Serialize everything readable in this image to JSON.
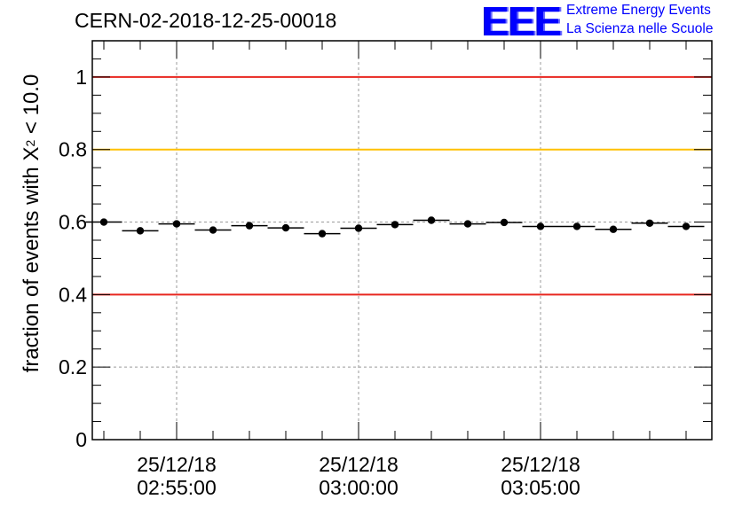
{
  "header": {
    "run_id": "CERN-02-2018-12-25-00018",
    "logo_text": "EEE",
    "logo_line1": "Extreme Energy Events",
    "logo_line2": "La Scienza nelle Scuole"
  },
  "chart_data": {
    "type": "scatter",
    "title": "CERN-02-2018-12-25-00018",
    "ylabel_prefix": "fraction of events with X",
    "ylabel_sup": "2",
    "ylabel_suffix": " < 10.0",
    "ylim": [
      0,
      1.1
    ],
    "yticks": [
      0,
      0.2,
      0.4,
      0.6,
      0.8,
      1
    ],
    "ytick_labels": [
      "0",
      "0.2",
      "0.4",
      "0.6",
      "0.8",
      "1"
    ],
    "xticks": [
      {
        "time": "02:55:00",
        "date": "25/12/18"
      },
      {
        "time": "03:00:00",
        "date": "25/12/18"
      },
      {
        "time": "03:05:00",
        "date": "25/12/18"
      }
    ],
    "grid": true,
    "reference_lines": [
      {
        "y": 1.0,
        "color": "#e8261f"
      },
      {
        "y": 0.8,
        "color": "#ffc000"
      },
      {
        "y": 0.4,
        "color": "#e8261f"
      }
    ],
    "points": [
      {
        "time": "02:53:00",
        "y": 0.6
      },
      {
        "time": "02:54:00",
        "y": 0.576
      },
      {
        "time": "02:55:00",
        "y": 0.595
      },
      {
        "time": "02:56:00",
        "y": 0.578
      },
      {
        "time": "02:57:00",
        "y": 0.59
      },
      {
        "time": "02:58:00",
        "y": 0.584
      },
      {
        "time": "02:59:00",
        "y": 0.568
      },
      {
        "time": "03:00:00",
        "y": 0.583
      },
      {
        "time": "03:01:00",
        "y": 0.593
      },
      {
        "time": "03:02:00",
        "y": 0.605
      },
      {
        "time": "03:03:00",
        "y": 0.595
      },
      {
        "time": "03:04:00",
        "y": 0.599
      },
      {
        "time": "03:05:00",
        "y": 0.588
      },
      {
        "time": "03:06:00",
        "y": 0.588
      },
      {
        "time": "03:07:00",
        "y": 0.58
      },
      {
        "time": "03:08:00",
        "y": 0.597
      },
      {
        "time": "03:09:00",
        "y": 0.588
      }
    ]
  }
}
